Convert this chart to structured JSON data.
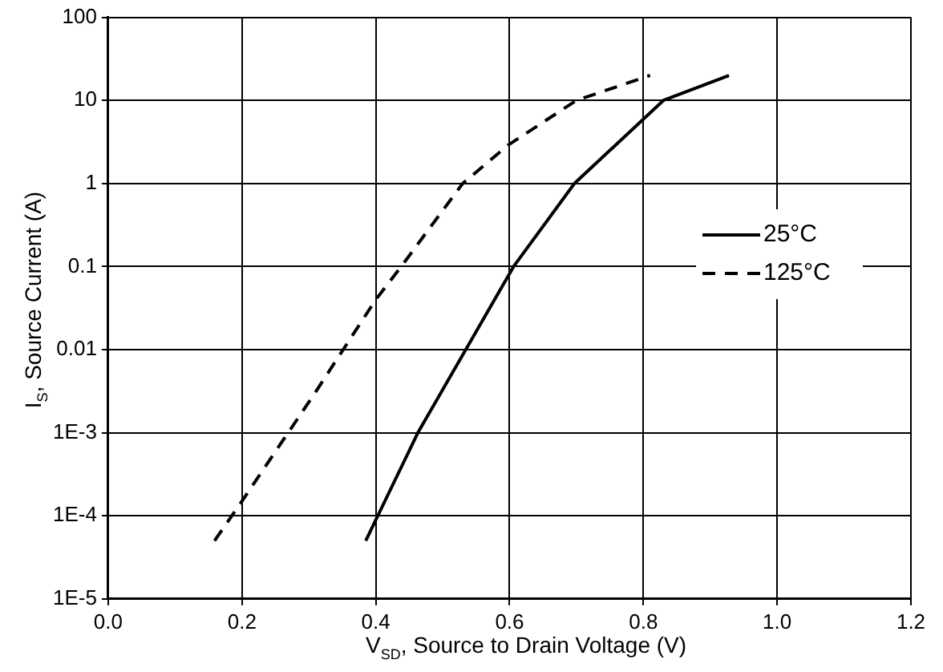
{
  "chart_data": {
    "type": "line",
    "xlabel": "V$_{SD}$, Source to Drain Voltage (V)",
    "ylabel": "I$_{S}$, Source Current (A)",
    "log": "y",
    "xlim": [
      0,
      1.2
    ],
    "xticks": [
      {
        "value": 0,
        "label": "0.0"
      },
      0.2,
      0.4,
      0.6,
      0.8,
      {
        "value": 1,
        "label": "1.0"
      },
      1.2
    ],
    "ylim": [
      1e-05,
      100
    ],
    "yticks": [
      {
        "value": 1e-05,
        "label": "1E-5"
      },
      {
        "value": 0.0001,
        "label": "1E-4"
      },
      {
        "value": 0.001,
        "label": "1E-3"
      },
      0.01,
      0.1,
      1,
      10,
      100
    ],
    "grid": true,
    "legend": "right",
    "marker": "none",
    "series": [
      {
        "name": "25°C",
        "color": "#000000",
        "line_style": "solid",
        "x": [
          0.385,
          0.463,
          0.606,
          0.697,
          0.83,
          0.928
        ],
        "values": [
          5e-05,
          0.001,
          0.1,
          1,
          10,
          20
        ]
      },
      {
        "name": "125°C",
        "color": "#000000",
        "line_style": "dashed",
        "x": [
          0.159,
          0.2,
          0.309,
          0.4,
          0.438,
          0.53,
          0.598,
          0.7,
          0.81
        ],
        "values": [
          5e-05,
          0.00015,
          0.003,
          0.04,
          0.1,
          1,
          2.9,
          10,
          20
        ]
      }
    ]
  }
}
